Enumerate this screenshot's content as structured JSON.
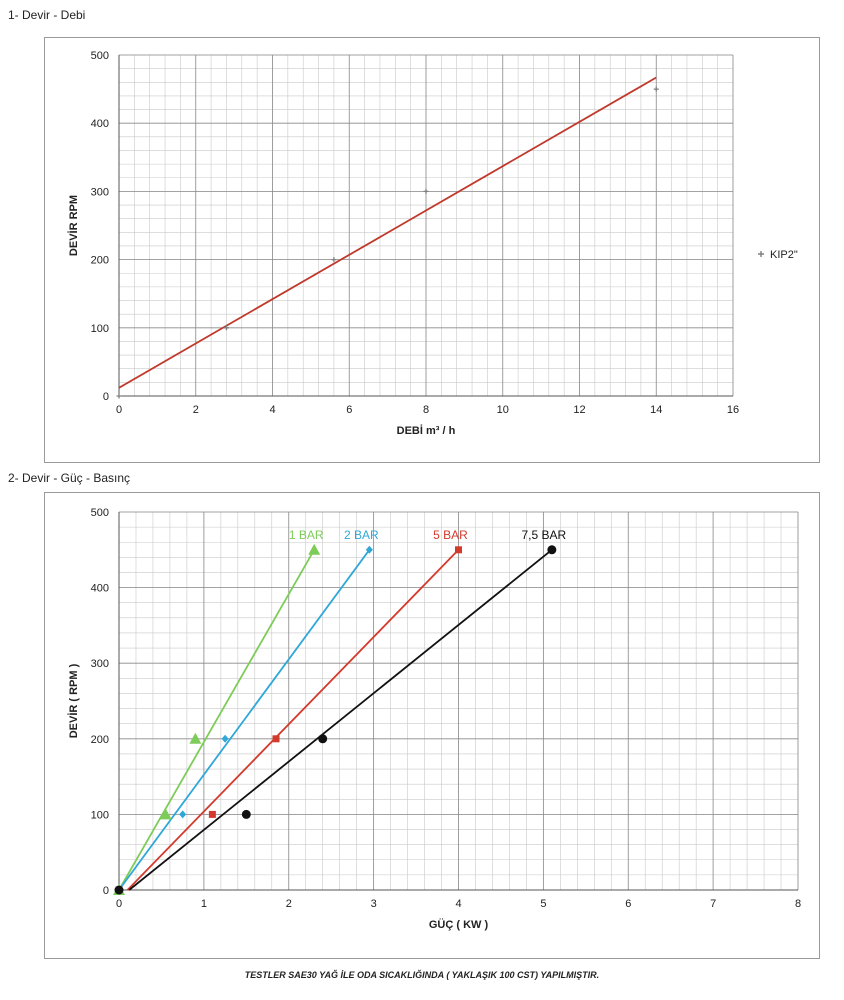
{
  "titles": {
    "section1": "1- Devir - Debi",
    "section2": "2- Devir - Güç - Basınç",
    "footer": "TESTLER SAE30 YAĞ İLE ODA SICAKLIĞINDA ( YAKLAŞIK 100 CST) YAPILMIŞTIR."
  },
  "chart_data": [
    {
      "type": "scatter",
      "xlabel": "DEBİ m³ / h",
      "ylabel": "DEVİR RPM",
      "xlim": [
        0,
        16
      ],
      "ylim": [
        0,
        500
      ],
      "xticks": [
        0,
        2,
        4,
        6,
        8,
        10,
        12,
        14,
        16
      ],
      "yticks": [
        0,
        100,
        200,
        300,
        400,
        500
      ],
      "grid": true,
      "legend": "right",
      "series": [
        {
          "name": "KIP2\"",
          "color": "#7f7f7f",
          "x": [
            0,
            2.8,
            5.6,
            8,
            14
          ],
          "y": [
            0,
            100,
            200,
            300,
            450
          ]
        }
      ],
      "trendline": {
        "color": "#c0392b",
        "x": [
          0,
          14
        ],
        "y": [
          12,
          467
        ]
      }
    },
    {
      "type": "line",
      "xlabel": "GÜÇ ( KW )",
      "ylabel": "DEVİR ( RPM )",
      "xlim": [
        0,
        8
      ],
      "ylim": [
        0,
        500
      ],
      "xticks": [
        0,
        1,
        2,
        3,
        4,
        5,
        6,
        7,
        8
      ],
      "yticks": [
        0,
        100,
        200,
        300,
        400,
        500
      ],
      "grid": true,
      "series": [
        {
          "name": "1 BAR",
          "color": "#7dcc5a",
          "marker": "triangle",
          "x": [
            0,
            0.55,
            0.9,
            2.3
          ],
          "y": [
            0,
            100,
            200,
            450
          ],
          "line": {
            "x": [
              0,
              2.3
            ],
            "y": [
              0,
              450
            ]
          }
        },
        {
          "name": "2 BAR",
          "color": "#2fa7d8",
          "marker": "diamond",
          "x": [
            0,
            0.75,
            1.25,
            2.95
          ],
          "y": [
            0,
            100,
            200,
            450
          ],
          "line": {
            "x": [
              0,
              2.95
            ],
            "y": [
              0,
              450
            ]
          }
        },
        {
          "name": "5 BAR",
          "color": "#d33a2c",
          "marker": "square",
          "x": [
            0,
            1.1,
            1.85,
            4.0
          ],
          "y": [
            0,
            100,
            200,
            450
          ],
          "line": {
            "x": [
              0.1,
              4.0
            ],
            "y": [
              0,
              450
            ]
          }
        },
        {
          "name": "7,5 BAR",
          "color": "#111111",
          "marker": "circle",
          "x": [
            0,
            1.5,
            2.4,
            5.1
          ],
          "y": [
            0,
            100,
            200,
            450
          ],
          "line": {
            "x": [
              0.12,
              5.1
            ],
            "y": [
              0,
              450
            ]
          }
        }
      ]
    }
  ]
}
